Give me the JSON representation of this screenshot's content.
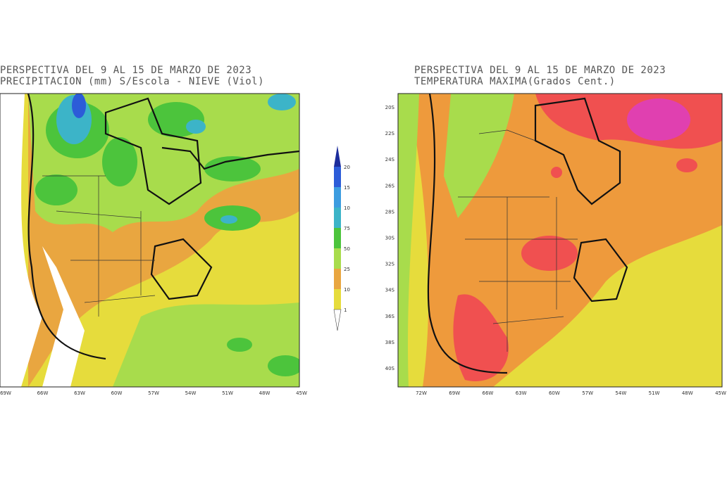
{
  "maps": [
    {
      "title": [
        "PERSPECTIVA DEL 9 AL 15  DE MARZO DE 2023",
        "PRECIPITACION (mm) S/Escola - NIEVE (Viol)"
      ],
      "x_labels": [
        "69W",
        "66W",
        "63W",
        "60W",
        "57W",
        "54W",
        "51W",
        "48W",
        "45W"
      ],
      "colorbar_labels": [
        "20",
        "15",
        "10",
        "75",
        "50",
        "25",
        "10",
        "1"
      ]
    },
    {
      "title": [
        "PERSPECTIVA DEL 9 AL 15  DE MARZO DE 2023",
        "TEMPERATURA MAXIMA(Grados Cent.)"
      ],
      "x_labels": [
        "72W",
        "69W",
        "66W",
        "63W",
        "60W",
        "57W",
        "54W",
        "51W",
        "48W",
        "45W"
      ],
      "y_labels": [
        "20S",
        "22S",
        "24S",
        "26S",
        "28S",
        "30S",
        "32S",
        "34S",
        "36S",
        "38S",
        "40S"
      ]
    }
  ]
}
